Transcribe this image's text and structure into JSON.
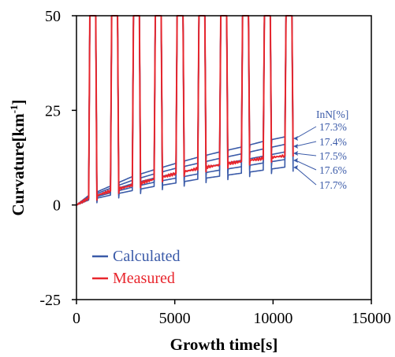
{
  "chart_data": {
    "type": "line",
    "xlabel": "Growth time[s]",
    "ylabel_main": "Curvature[km",
    "ylabel_sup": "-1",
    "ylabel_close": "]",
    "xlim": [
      0,
      15000
    ],
    "ylim": [
      -25,
      50
    ],
    "xticks": [
      0,
      5000,
      10000,
      15000
    ],
    "xtick_labels": [
      "0",
      "5000",
      "10000",
      "15000"
    ],
    "yticks": [
      -25,
      0,
      25,
      50
    ],
    "ytick_labels": [
      "-25",
      "0",
      "25",
      "50"
    ],
    "grid": false,
    "legend": [
      {
        "label": "Calculated",
        "color": "#3a5aa8"
      },
      {
        "label": "Measured",
        "color": "#e8262d"
      }
    ],
    "legend_position": "bottom-left",
    "colors": {
      "calculated": "#3a5aa8",
      "measured": "#e8262d",
      "annotation": "#3a5aa8"
    },
    "spike_start_times": [
      620,
      1730,
      2840,
      3950,
      5060,
      6170,
      7280,
      8390,
      9500,
      10600
    ],
    "spike_width_s": 420,
    "spike_peak": 50,
    "series": [
      {
        "name": "Calculated",
        "kind": "calculated",
        "indium_label": "17.3%",
        "base": [
          [
            0,
            0
          ],
          [
            620,
            2.5
          ],
          [
            1730,
            5
          ],
          [
            2840,
            7.5
          ],
          [
            3950,
            9.3
          ],
          [
            5060,
            11
          ],
          [
            6170,
            12.6
          ],
          [
            7280,
            14
          ],
          [
            8390,
            15.3
          ],
          [
            9500,
            16.8
          ],
          [
            10600,
            18
          ],
          [
            11000,
            18
          ]
        ]
      },
      {
        "name": "Calculated",
        "kind": "calculated",
        "indium_label": "17.4%",
        "base": [
          [
            0,
            0
          ],
          [
            620,
            2.2
          ],
          [
            1730,
            4.4
          ],
          [
            2840,
            6.5
          ],
          [
            3950,
            8.2
          ],
          [
            5060,
            9.7
          ],
          [
            6170,
            11
          ],
          [
            7280,
            12.3
          ],
          [
            8390,
            13.5
          ],
          [
            9500,
            14.8
          ],
          [
            10600,
            16
          ],
          [
            11000,
            16
          ]
        ]
      },
      {
        "name": "Calculated",
        "kind": "calculated",
        "indium_label": "17.5%",
        "base": [
          [
            0,
            0
          ],
          [
            620,
            1.9
          ],
          [
            1730,
            3.8
          ],
          [
            2840,
            5.6
          ],
          [
            3950,
            7.1
          ],
          [
            5060,
            8.4
          ],
          [
            6170,
            9.6
          ],
          [
            7280,
            10.7
          ],
          [
            8390,
            11.8
          ],
          [
            9500,
            12.9
          ],
          [
            10600,
            14
          ],
          [
            11000,
            14
          ]
        ]
      },
      {
        "name": "Calculated",
        "kind": "calculated",
        "indium_label": "17.6%",
        "base": [
          [
            0,
            0
          ],
          [
            620,
            1.6
          ],
          [
            1730,
            3.2
          ],
          [
            2840,
            4.7
          ],
          [
            3950,
            6
          ],
          [
            5060,
            7.1
          ],
          [
            6170,
            8.2
          ],
          [
            7280,
            9.2
          ],
          [
            8390,
            10.1
          ],
          [
            9500,
            11.1
          ],
          [
            10600,
            12
          ],
          [
            11000,
            12
          ]
        ]
      },
      {
        "name": "Calculated",
        "kind": "calculated",
        "indium_label": "17.7%",
        "base": [
          [
            0,
            0
          ],
          [
            620,
            1.3
          ],
          [
            1730,
            2.6
          ],
          [
            2840,
            3.8
          ],
          [
            3950,
            4.9
          ],
          [
            5060,
            5.8
          ],
          [
            6170,
            6.8
          ],
          [
            7280,
            7.6
          ],
          [
            8390,
            8.4
          ],
          [
            9500,
            9.2
          ],
          [
            10600,
            10
          ],
          [
            11000,
            10
          ]
        ]
      },
      {
        "name": "Measured",
        "kind": "measured",
        "base": [
          [
            0,
            0
          ],
          [
            620,
            1.8
          ],
          [
            1730,
            3.7
          ],
          [
            2840,
            5.2
          ],
          [
            3950,
            6.8
          ],
          [
            5060,
            8.3
          ],
          [
            6170,
            9.6
          ],
          [
            7280,
            10.6
          ],
          [
            8390,
            11.5
          ],
          [
            9500,
            12.3
          ],
          [
            10600,
            13
          ],
          [
            11000,
            14
          ]
        ]
      }
    ],
    "annotation": {
      "title": "InN[%]",
      "labels": [
        "17.3%",
        "17.4%",
        "17.5%",
        "17.6%",
        "17.7%"
      ]
    }
  }
}
